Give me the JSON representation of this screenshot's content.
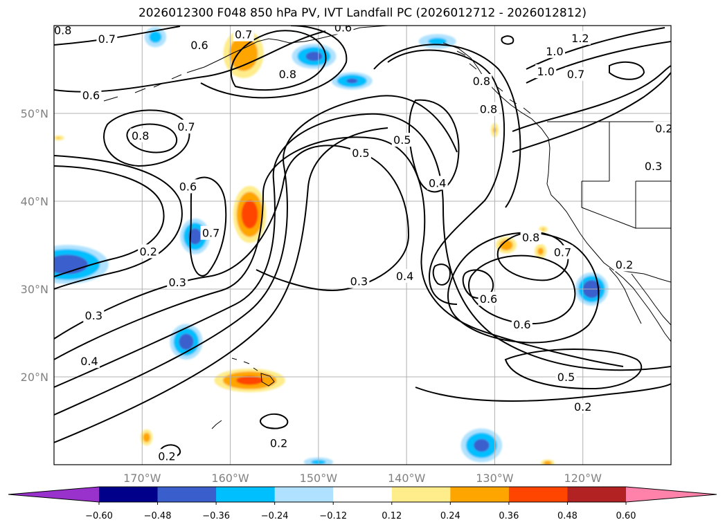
{
  "chart_data": {
    "type": "contour-map",
    "title": "2026012300 F048 850 hPa PV, IVT Landfall PC (2026012712 - 2026012812)",
    "map": {
      "lon_range": [
        -180,
        -110
      ],
      "lat_range": [
        10,
        60
      ],
      "x_ticks": [
        {
          "lon": -170,
          "label": "170°W"
        },
        {
          "lon": -160,
          "label": "160°W"
        },
        {
          "lon": -150,
          "label": "150°W"
        },
        {
          "lon": -140,
          "label": "140°W"
        },
        {
          "lon": -130,
          "label": "130°W"
        },
        {
          "lon": -120,
          "label": "120°W"
        }
      ],
      "y_ticks": [
        {
          "lat": 20,
          "label": "20°N"
        },
        {
          "lat": 30,
          "label": "30°N"
        },
        {
          "lat": 40,
          "label": "40°N"
        },
        {
          "lat": 50,
          "label": "50°N"
        }
      ],
      "gridlines": true
    },
    "contour_field": "850 hPa PV",
    "contour_labels": [
      {
        "text": "0.8",
        "lon": -179.0,
        "lat": 59.5
      },
      {
        "text": "0.7",
        "lon": -174.0,
        "lat": 58.5
      },
      {
        "text": "0.6",
        "lon": -163.5,
        "lat": 57.8
      },
      {
        "text": "0.7",
        "lon": -158.5,
        "lat": 59.0
      },
      {
        "text": "0.6",
        "lon": -147.2,
        "lat": 59.8
      },
      {
        "text": "0.8",
        "lon": -153.5,
        "lat": 54.5
      },
      {
        "text": "0.6",
        "lon": -175.8,
        "lat": 52.1
      },
      {
        "text": "0.8",
        "lon": -170.2,
        "lat": 47.5
      },
      {
        "text": "0.7",
        "lon": -165.0,
        "lat": 48.5
      },
      {
        "text": "0.6",
        "lon": -164.8,
        "lat": 41.7
      },
      {
        "text": "0.7",
        "lon": -162.2,
        "lat": 36.4
      },
      {
        "text": "0.2",
        "lon": -169.3,
        "lat": 34.3
      },
      {
        "text": "0.3",
        "lon": -166.0,
        "lat": 30.8
      },
      {
        "text": "0.3",
        "lon": -175.5,
        "lat": 27.0
      },
      {
        "text": "0.4",
        "lon": -176.0,
        "lat": 21.8
      },
      {
        "text": "0.5",
        "lon": -145.2,
        "lat": 45.5
      },
      {
        "text": "0.5",
        "lon": -140.5,
        "lat": 47.0
      },
      {
        "text": "0.4",
        "lon": -136.5,
        "lat": 42.1
      },
      {
        "text": "0.8",
        "lon": -131.5,
        "lat": 53.7
      },
      {
        "text": "0.8",
        "lon": -130.7,
        "lat": 50.5
      },
      {
        "text": "1.0",
        "lon": -123.2,
        "lat": 57.1
      },
      {
        "text": "1.2",
        "lon": -120.3,
        "lat": 58.6
      },
      {
        "text": "1.0",
        "lon": -124.2,
        "lat": 54.8
      },
      {
        "text": "0.7",
        "lon": -120.8,
        "lat": 54.5
      },
      {
        "text": "0.2",
        "lon": -110.8,
        "lat": 48.3
      },
      {
        "text": "0.3",
        "lon": -112.0,
        "lat": 44.0
      },
      {
        "text": "0.8",
        "lon": -125.9,
        "lat": 35.9
      },
      {
        "text": "0.7",
        "lon": -122.3,
        "lat": 34.2
      },
      {
        "text": "0.2",
        "lon": -115.3,
        "lat": 32.8
      },
      {
        "text": "0.3",
        "lon": -145.4,
        "lat": 30.9
      },
      {
        "text": "0.4",
        "lon": -140.2,
        "lat": 31.5
      },
      {
        "text": "0.6",
        "lon": -130.7,
        "lat": 28.9
      },
      {
        "text": "0.6",
        "lon": -126.9,
        "lat": 26.0
      },
      {
        "text": "0.5",
        "lon": -121.9,
        "lat": 20.0
      },
      {
        "text": "0.2",
        "lon": -120.0,
        "lat": 16.6
      },
      {
        "text": "0.2",
        "lon": -154.5,
        "lat": 12.5
      },
      {
        "text": "0.2",
        "lon": -167.2,
        "lat": 11.0
      }
    ],
    "shaded_field": "IVT Landfall PC",
    "shaded_regions": [
      {
        "sign": "neg",
        "lon": -178.5,
        "lat": 32.8,
        "rx": 5.5,
        "ry": 2.6,
        "peak": 0.44
      },
      {
        "sign": "neg",
        "lon": -164.0,
        "lat": 36.0,
        "rx": 2.0,
        "ry": 2.4,
        "peak": 0.42
      },
      {
        "sign": "neg",
        "lon": -165.0,
        "lat": 24.0,
        "rx": 2.2,
        "ry": 2.4,
        "peak": 0.42
      },
      {
        "sign": "neg",
        "lon": -119.0,
        "lat": 30.0,
        "rx": 2.2,
        "ry": 2.2,
        "peak": 0.46
      },
      {
        "sign": "neg",
        "lon": -150.5,
        "lat": 56.5,
        "rx": 3.0,
        "ry": 1.7,
        "peak": 0.4
      },
      {
        "sign": "neg",
        "lon": -146.2,
        "lat": 53.7,
        "rx": 2.8,
        "ry": 1.2,
        "peak": 0.38
      },
      {
        "sign": "neg",
        "lon": -131.5,
        "lat": 12.2,
        "rx": 2.8,
        "ry": 2.3,
        "peak": 0.4
      },
      {
        "sign": "neg",
        "lon": -168.5,
        "lat": 58.7,
        "rx": 1.6,
        "ry": 1.5,
        "peak": 0.3
      },
      {
        "sign": "neg",
        "lon": -136.5,
        "lat": 58.2,
        "rx": 2.8,
        "ry": 1.1,
        "peak": 0.28
      },
      {
        "sign": "neg",
        "lon": -150.0,
        "lat": 10.3,
        "rx": 2.2,
        "ry": 0.7,
        "peak": 0.28
      },
      {
        "sign": "pos",
        "lon": -157.8,
        "lat": 38.5,
        "rx": 2.2,
        "ry": 3.8,
        "peak": 0.44
      },
      {
        "sign": "pos",
        "lon": -157.8,
        "lat": 19.6,
        "rx": 4.8,
        "ry": 1.6,
        "peak": 0.4
      },
      {
        "sign": "pos",
        "lon": -158.5,
        "lat": 56.8,
        "rx": 2.8,
        "ry": 3.4,
        "peak": 0.36
      },
      {
        "sign": "pos",
        "lon": -128.7,
        "lat": 35.0,
        "rx": 1.5,
        "ry": 1.2,
        "peak": 0.32
      },
      {
        "sign": "pos",
        "lon": -124.8,
        "lat": 34.3,
        "rx": 0.9,
        "ry": 1.1,
        "peak": 0.28
      },
      {
        "sign": "pos",
        "lon": -124.5,
        "lat": 36.8,
        "rx": 0.7,
        "ry": 0.5,
        "peak": 0.25
      },
      {
        "sign": "pos",
        "lon": -169.5,
        "lat": 13.1,
        "rx": 0.9,
        "ry": 1.2,
        "peak": 0.3
      },
      {
        "sign": "pos",
        "lon": -130.0,
        "lat": 48.1,
        "rx": 0.6,
        "ry": 1.1,
        "peak": 0.26
      },
      {
        "sign": "pos",
        "lon": -124.0,
        "lat": 10.2,
        "rx": 1.0,
        "ry": 0.5,
        "peak": 0.3
      },
      {
        "sign": "pos",
        "lon": -179.5,
        "lat": 47.2,
        "rx": 0.9,
        "ry": 0.4,
        "peak": 0.25
      }
    ],
    "colorbar": {
      "extend": "both",
      "levels": [
        -0.6,
        -0.48,
        -0.36,
        -0.24,
        -0.12,
        0.12,
        0.24,
        0.36,
        0.48,
        0.6
      ],
      "colors": [
        "#9932cc",
        "#00008b",
        "#3a5fcd",
        "#00bfff",
        "#b0e2ff",
        "#ffffff",
        "#ffec8b",
        "#ffa500",
        "#ff4500",
        "#b22222",
        "#ff82ab"
      ],
      "tick_labels": [
        "−0.60",
        "−0.48",
        "−0.36",
        "−0.24",
        "−0.12",
        "0.12",
        "0.24",
        "0.36",
        "0.48",
        "0.60"
      ]
    }
  }
}
